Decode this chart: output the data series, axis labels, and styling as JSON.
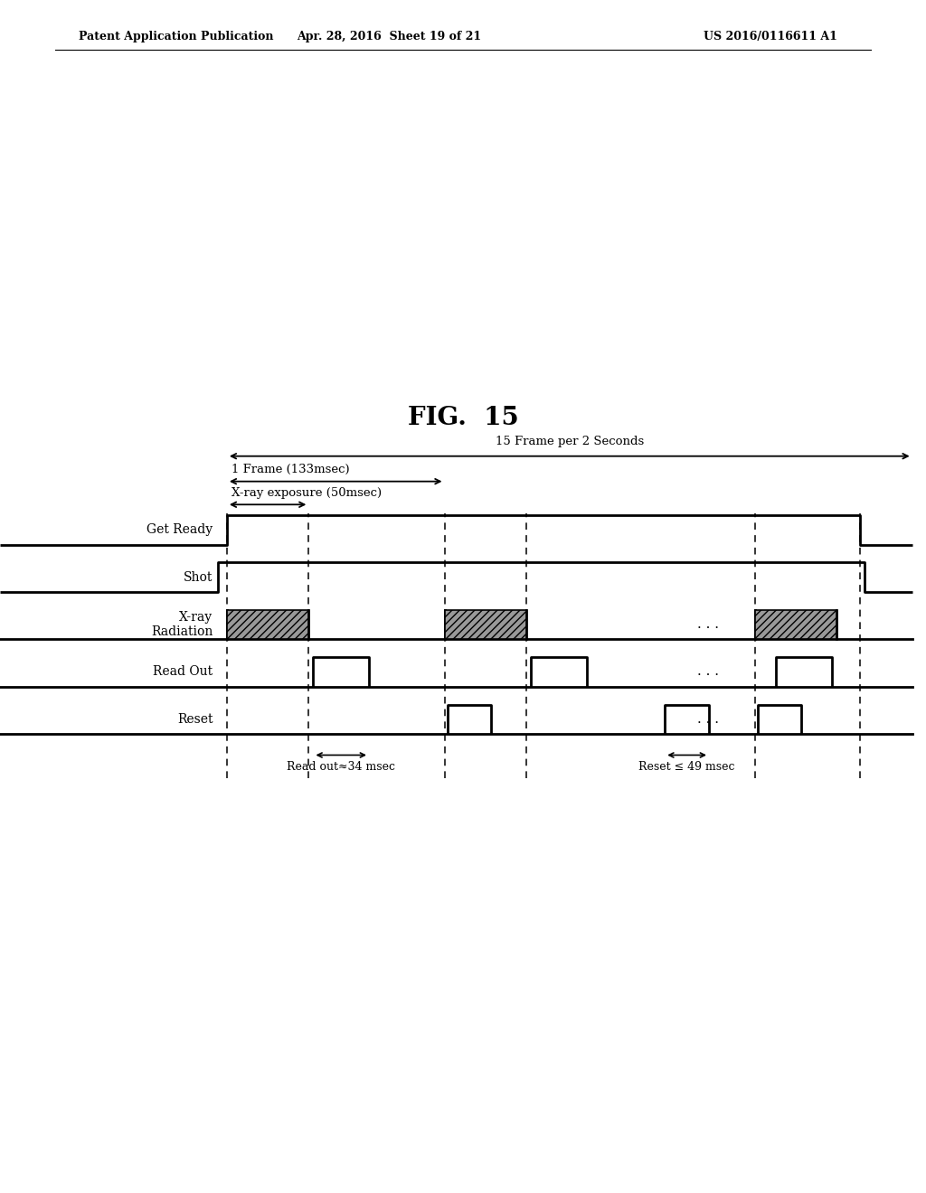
{
  "header_left": "Patent Application Publication",
  "header_mid": "Apr. 28, 2016  Sheet 19 of 21",
  "header_right": "US 2016/0116611 A1",
  "fig_caption": "FIG.  15",
  "annotation_15frame": "15 Frame per 2 Seconds",
  "annotation_1frame": "1 Frame (133msec)",
  "annotation_xray_exposure": "X-ray exposure (50msec)",
  "annotation_readout": "Read out≈34 msec",
  "annotation_reset": "Reset ≤ 49 msec",
  "signal_labels": [
    "Get Ready",
    "Shot",
    "X-ray\nRadiation",
    "Read Out",
    "Reset"
  ],
  "background_color": "#ffffff",
  "line_color": "#000000"
}
